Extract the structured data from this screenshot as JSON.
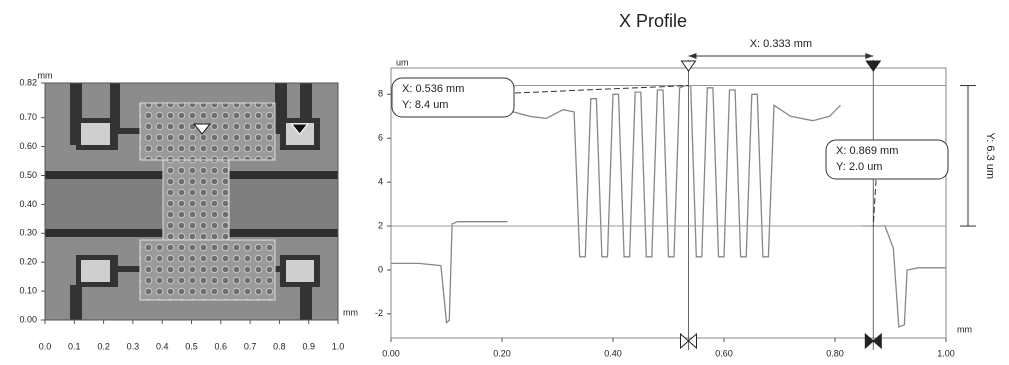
{
  "chart_data": [
    {
      "type": "image",
      "x_unit": "mm",
      "y_unit": "mm",
      "xlim": [
        0,
        1.0
      ],
      "ylim": [
        0,
        0.82
      ],
      "xticks": [
        {
          "value": 0,
          "label": "0.0"
        },
        {
          "value": 0.1,
          "label": "0.1"
        },
        {
          "value": 0.2,
          "label": "0.2"
        },
        {
          "value": 0.3,
          "label": "0.3"
        },
        {
          "value": 0.4,
          "label": "0.4"
        },
        {
          "value": 0.5,
          "label": "0.5"
        },
        {
          "value": 0.6,
          "label": "0.6"
        },
        {
          "value": 0.7,
          "label": "0.7"
        },
        {
          "value": 0.8,
          "label": "0.8"
        },
        {
          "value": 0.9,
          "label": "0.9"
        },
        {
          "value": 1.0,
          "label": "1.0"
        }
      ],
      "yticks": [
        {
          "value": 0,
          "label": "0.00"
        },
        {
          "value": 0.1,
          "label": "0.10"
        },
        {
          "value": 0.2,
          "label": "0.20"
        },
        {
          "value": 0.3,
          "label": "0.30"
        },
        {
          "value": 0.4,
          "label": "0.40"
        },
        {
          "value": 0.5,
          "label": "0.50"
        },
        {
          "value": 0.6,
          "label": "0.60"
        },
        {
          "value": 0.7,
          "label": "0.70"
        },
        {
          "value": 0.82,
          "label": "0.82"
        }
      ]
    },
    {
      "type": "line",
      "title": "X Profile",
      "x_unit": "mm",
      "y_unit": "um",
      "color": "#888888",
      "xlim": [
        0,
        1.0
      ],
      "ylim": [
        -3.1,
        9.2
      ],
      "xticks": [
        {
          "value": 0,
          "label": "0.00"
        },
        {
          "value": 0.2,
          "label": "0.20"
        },
        {
          "value": 0.4,
          "label": "0.40"
        },
        {
          "value": 0.6,
          "label": "0.60"
        },
        {
          "value": 0.8,
          "label": "0.80"
        },
        {
          "value": 1.0,
          "label": "1.00"
        }
      ],
      "yticks": [
        -2,
        0,
        2,
        4,
        6,
        8
      ],
      "x": [
        0,
        0.05,
        0.09,
        0.1,
        0.105,
        0.11,
        0.12,
        0.15,
        0.2,
        0.21,
        0.215,
        0.22,
        0.25,
        0.28,
        0.31,
        0.33,
        0.34,
        0.35,
        0.36,
        0.37,
        0.38,
        0.39,
        0.4,
        0.41,
        0.42,
        0.43,
        0.44,
        0.45,
        0.46,
        0.47,
        0.48,
        0.49,
        0.5,
        0.51,
        0.52,
        0.53,
        0.54,
        0.55,
        0.56,
        0.57,
        0.58,
        0.59,
        0.6,
        0.61,
        0.62,
        0.63,
        0.64,
        0.65,
        0.66,
        0.67,
        0.68,
        0.69,
        0.72,
        0.76,
        0.79,
        0.81,
        0.83,
        0.85,
        0.87,
        0.89,
        0.905,
        0.915,
        0.925,
        0.93,
        0.95,
        1.0
      ],
      "values": [
        0.3,
        0.3,
        0.2,
        -2.4,
        -2.3,
        2.1,
        2.2,
        2.2,
        2.2,
        2.2,
        null,
        7.2,
        7.0,
        6.9,
        7.3,
        7.2,
        0.6,
        0.6,
        7.8,
        7.8,
        0.6,
        0.6,
        8.0,
        8.0,
        0.6,
        0.6,
        8.1,
        8.1,
        0.6,
        0.6,
        8.2,
        8.2,
        0.6,
        0.6,
        8.3,
        8.4,
        8.4,
        0.6,
        0.6,
        8.3,
        8.3,
        0.6,
        0.6,
        8.2,
        8.2,
        0.6,
        0.6,
        8.0,
        8.0,
        0.6,
        0.6,
        7.5,
        7.0,
        6.8,
        7.0,
        7.5,
        null,
        2.0,
        2.0,
        2.0,
        1.0,
        -2.6,
        -2.5,
        0.0,
        0.1,
        0.1
      ],
      "cursors": [
        {
          "x": 0.536,
          "y": 8.4,
          "x_label": "X: 0.536 mm",
          "y_label": "Y: 8.4 um"
        },
        {
          "x": 0.869,
          "y": 2.0,
          "x_label": "X: 0.869 mm",
          "y_label": "Y: 2.0 um"
        }
      ],
      "delta": {
        "x_label": "X: 0.333 mm",
        "y_label": "Y: 6.3 um"
      }
    }
  ]
}
